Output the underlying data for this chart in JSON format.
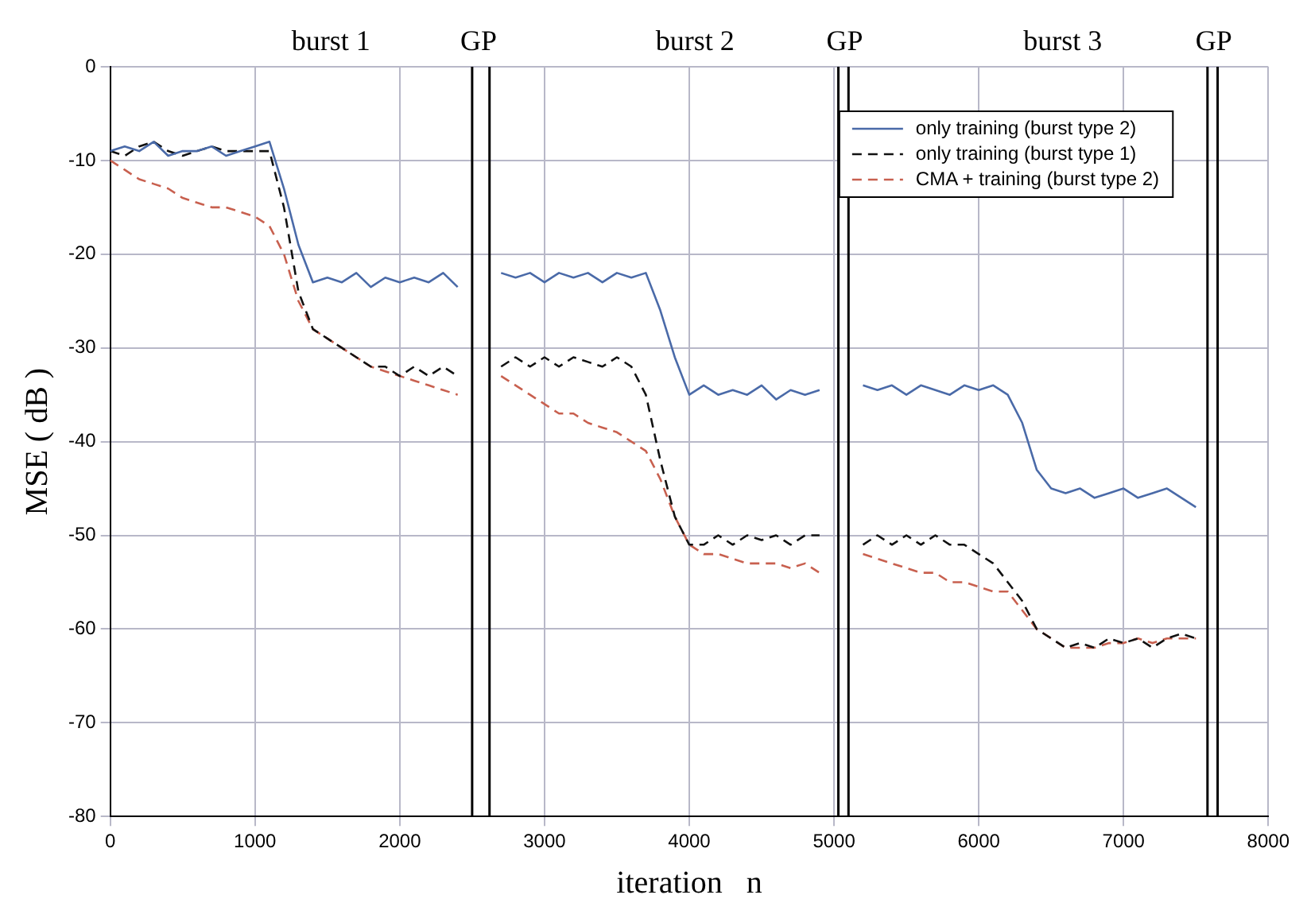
{
  "chart_data": {
    "type": "line",
    "xlabel": "iteration   n",
    "ylabel": "MSE ( dB )",
    "x": [
      0,
      100,
      200,
      300,
      400,
      500,
      600,
      700,
      800,
      900,
      1000,
      1100,
      1200,
      1300,
      1400,
      1500,
      1600,
      1700,
      1800,
      1900,
      2000,
      2100,
      2200,
      2300,
      2400,
      2500,
      2600,
      2700,
      2800,
      2900,
      3000,
      3100,
      3200,
      3300,
      3400,
      3500,
      3600,
      3700,
      3800,
      3900,
      4000,
      4100,
      4200,
      4300,
      4400,
      4500,
      4600,
      4700,
      4800,
      4900,
      5000,
      5100,
      5200,
      5300,
      5400,
      5500,
      5600,
      5700,
      5800,
      5900,
      6000,
      6100,
      6200,
      6300,
      6400,
      6500,
      6600,
      6700,
      6800,
      6900,
      7000,
      7100,
      7200,
      7300,
      7400,
      7500
    ],
    "series": [
      {
        "name": "only training (burst type 2)",
        "color": "#4a6aa8",
        "line_style": "solid",
        "values": [
          -9,
          -8.5,
          -9,
          -8,
          -9.5,
          -9,
          -9,
          -8.5,
          -9.5,
          -9,
          -8.5,
          -8,
          -13,
          -19,
          -23,
          -22.5,
          -23,
          -22,
          -23.5,
          -22.5,
          -23,
          -22.5,
          -23,
          -22,
          -23.5,
          null,
          null,
          -22,
          -22.5,
          -22,
          -23,
          -22,
          -22.5,
          -22,
          -23,
          -22,
          -22.5,
          -22,
          -26,
          -31,
          -35,
          -34,
          -35,
          -34.5,
          -35,
          -34,
          -35.5,
          -34.5,
          -35,
          -34.5,
          null,
          null,
          -34,
          -34.5,
          -34,
          -35,
          -34,
          -34.5,
          -35,
          -34,
          -34.5,
          -34,
          -35,
          -38,
          -43,
          -45,
          -45.5,
          -45,
          -46,
          -45.5,
          -45,
          -46,
          -45.5,
          -45,
          -46,
          -47
        ]
      },
      {
        "name": "only training (burst type 1)",
        "color": "#111111",
        "line_style": "dashed",
        "values": [
          -9,
          -9.5,
          -8.5,
          -8,
          -9,
          -9.5,
          -9,
          -8.5,
          -9,
          -9,
          -9,
          -9,
          -15,
          -24,
          -28,
          -29,
          -30,
          -31,
          -32,
          -32,
          -33,
          -32,
          -33,
          -32,
          -33,
          null,
          null,
          -32,
          -31,
          -32,
          -31,
          -32,
          -31,
          -31.5,
          -32,
          -31,
          -32,
          -35,
          -42,
          -48,
          -51,
          -51,
          -50,
          -51,
          -50,
          -50.5,
          -50,
          -51,
          -50,
          -50,
          null,
          null,
          -51,
          -50,
          -51,
          -50,
          -51,
          -50,
          -51,
          -51,
          -52,
          -53,
          -55,
          -57,
          -60,
          -61,
          -62,
          -61.5,
          -62,
          -61,
          -61.5,
          -61,
          -62,
          -61,
          -60.5,
          -61
        ]
      },
      {
        "name": "CMA + training (burst type 2)",
        "color": "#c8604f",
        "line_style": "dashed",
        "values": [
          -10,
          -11,
          -12,
          -12.5,
          -13,
          -14,
          -14.5,
          -15,
          -15,
          -15.5,
          -16,
          -17,
          -20,
          -25,
          -28,
          -29,
          -30,
          -31,
          -32,
          -32.5,
          -33,
          -33.5,
          -34,
          -34.5,
          -35,
          null,
          null,
          -33,
          -34,
          -35,
          -36,
          -37,
          -37,
          -38,
          -38.5,
          -39,
          -40,
          -41,
          -44,
          -48,
          -51,
          -52,
          -52,
          -52.5,
          -53,
          -53,
          -53,
          -53.5,
          -53,
          -54,
          null,
          null,
          -52,
          -52.5,
          -53,
          -53.5,
          -54,
          -54,
          -55,
          -55,
          -55.5,
          -56,
          -56,
          -58,
          -60,
          -61,
          -62,
          -62,
          -62,
          -61.5,
          -61.5,
          -61,
          -61.5,
          -61,
          -61,
          -61
        ]
      }
    ],
    "xlim": [
      0,
      8000
    ],
    "xticks": [
      0,
      1000,
      2000,
      3000,
      4000,
      5000,
      6000,
      7000,
      8000
    ],
    "ylim": [
      -80,
      0
    ],
    "yticks": [
      -80,
      -70,
      -60,
      -50,
      -40,
      -30,
      -20,
      -10,
      0
    ],
    "ref_lines": [
      {
        "axis": "x",
        "value": 2500,
        "label": "GP",
        "color": "#000000"
      },
      {
        "axis": "x",
        "value": 2620,
        "color": "#000000"
      },
      {
        "axis": "x",
        "value": 5030,
        "label": "GP",
        "color": "#000000"
      },
      {
        "axis": "x",
        "value": 5100,
        "color": "#000000"
      },
      {
        "axis": "x",
        "value": 7580,
        "label": "GP",
        "color": "#000000"
      },
      {
        "axis": "x",
        "value": 7650,
        "color": "#000000"
      }
    ],
    "annotations": [
      "burst 1",
      "burst 2",
      "burst 3"
    ],
    "grid": true,
    "legend": "top right",
    "marker": "none"
  }
}
